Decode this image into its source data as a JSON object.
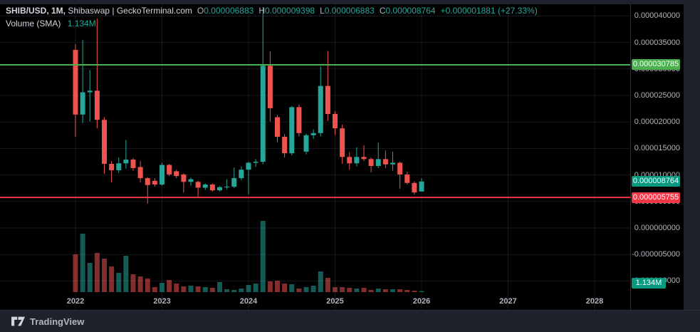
{
  "header": {
    "symbol": "SHIB/USD",
    "interval": "1M",
    "market": "Shibaswap | GeckoTerminal.com",
    "ohlc": {
      "o_label": "O",
      "o": "0.000006883",
      "h_label": "H",
      "h": "0.000009398",
      "l_label": "L",
      "l": "0.000006883",
      "c_label": "C",
      "c": "0.000008764",
      "change": "+0.000001881 (+27.33%)"
    },
    "indicator": {
      "name": "Volume (SMA)",
      "value": "1.134M"
    }
  },
  "footer": {
    "brand": "TradingView"
  },
  "colors": {
    "up": "#26a69a",
    "down": "#ef5350",
    "vol_up": "rgba(38,166,154,0.55)",
    "vol_down": "rgba(239,83,80,0.55)",
    "level_green": "#4caf50",
    "level_red": "#f23645",
    "close_badge": "#089981",
    "axis_text": "#b2b5be",
    "grid": "rgba(42,46,57,0.55)"
  },
  "chart_data": {
    "type": "candlestick",
    "subtype": "price+volume_overlay",
    "price_unit": "1e-6 USD (micro-dollars)",
    "x_unit": "month",
    "y_axis_ticks": [
      {
        "label": "0.000040000",
        "value": 40
      },
      {
        "label": "0.000035000",
        "value": 35
      },
      {
        "label": "0.000030000",
        "value": 30
      },
      {
        "label": "0.000025000",
        "value": 25
      },
      {
        "label": "0.000020000",
        "value": 20
      },
      {
        "label": "0.000015000",
        "value": 15
      },
      {
        "label": "0.000010000",
        "value": 10
      },
      {
        "label": "0.000005000",
        "value": 5
      },
      {
        "label": "0.000000000",
        "value": 0
      },
      {
        "label": "-0.000005000",
        "value": -5
      },
      {
        "label": "-0.000010000",
        "value": -10
      }
    ],
    "x_axis_ticks": [
      {
        "label": "2022",
        "year_index": 0
      },
      {
        "label": "2023",
        "year_index": 1
      },
      {
        "label": "2024",
        "year_index": 2
      },
      {
        "label": "2025",
        "year_index": 3
      },
      {
        "label": "2026",
        "year_index": 4
      },
      {
        "label": "2027",
        "year_index": 5
      },
      {
        "label": "2028",
        "year_index": 6
      }
    ],
    "levels": [
      {
        "name": "resistance-ray",
        "label": "0.000030785",
        "value": 30.785,
        "color": "#4caf50"
      },
      {
        "name": "support-ray",
        "label": "0.000005755",
        "value": 5.755,
        "color": "#f23645"
      }
    ],
    "last_close_badge": {
      "label": "0.000008764",
      "value": 8.764,
      "color": "#089981"
    },
    "volume_badge": {
      "label": "1.134M",
      "color": "#089981"
    },
    "candles": [
      [
        "2022-01",
        33.6,
        34.7,
        17.2,
        21.4
      ],
      [
        "2022-02",
        21.4,
        35.5,
        19.8,
        25.6
      ],
      [
        "2022-03",
        25.6,
        29.8,
        20.1,
        25.9
      ],
      [
        "2022-04",
        25.9,
        39.5,
        18.8,
        20.4
      ],
      [
        "2022-05",
        20.4,
        20.9,
        10.2,
        12.1
      ],
      [
        "2022-06",
        12.1,
        12.6,
        8.6,
        10.9
      ],
      [
        "2022-07",
        10.9,
        13.3,
        10.4,
        12.2
      ],
      [
        "2022-08",
        12.2,
        16.6,
        11.2,
        12.9
      ],
      [
        "2022-09",
        12.9,
        13.2,
        10.8,
        11.3
      ],
      [
        "2022-10",
        11.5,
        12.6,
        8.6,
        9.4
      ],
      [
        "2022-11",
        9.4,
        9.6,
        4.6,
        8.1
      ],
      [
        "2022-12",
        8.9,
        9.4,
        7.8,
        8.2
      ],
      [
        "2023-01",
        8.2,
        12.3,
        8.0,
        11.9
      ],
      [
        "2023-02",
        11.9,
        12.1,
        9.8,
        10.1
      ],
      [
        "2023-03",
        10.7,
        11.0,
        9.4,
        9.8
      ],
      [
        "2023-04",
        10.1,
        10.3,
        6.7,
        8.7
      ],
      [
        "2023-05",
        8.7,
        9.5,
        8.0,
        9.2
      ],
      [
        "2023-06",
        8.7,
        8.9,
        5.8,
        7.6
      ],
      [
        "2023-07",
        7.6,
        8.4,
        7.2,
        8.2
      ],
      [
        "2023-08",
        8.2,
        8.4,
        6.9,
        7.1
      ],
      [
        "2023-09",
        7.1,
        7.9,
        6.9,
        7.7
      ],
      [
        "2023-10",
        7.7,
        9.2,
        7.3,
        7.8
      ],
      [
        "2023-11",
        7.8,
        11.4,
        7.5,
        9.4
      ],
      [
        "2023-12",
        9.4,
        11.6,
        9.0,
        11.0
      ],
      [
        "2024-01",
        11.0,
        12.5,
        6.3,
        12.3
      ],
      [
        "2024-02",
        12.3,
        13.0,
        11.5,
        12.5
      ],
      [
        "2024-03",
        12.5,
        41.7,
        12.0,
        30.6
      ],
      [
        "2024-04",
        30.6,
        33.3,
        20.1,
        22.6
      ],
      [
        "2024-05",
        20.9,
        21.3,
        16.2,
        17.2
      ],
      [
        "2024-06",
        17.2,
        17.7,
        13.3,
        14.1
      ],
      [
        "2024-07",
        14.1,
        23.0,
        13.7,
        22.8
      ],
      [
        "2024-08",
        22.8,
        23.3,
        17.3,
        17.9
      ],
      [
        "2024-09",
        14.4,
        17.8,
        13.9,
        17.5
      ],
      [
        "2024-10",
        17.5,
        18.6,
        16.8,
        17.9
      ],
      [
        "2024-11",
        17.9,
        30.5,
        17.3,
        26.8
      ],
      [
        "2024-12",
        26.8,
        33.4,
        20.2,
        21.5
      ],
      [
        "2025-01",
        21.5,
        22.0,
        17.5,
        18.8
      ],
      [
        "2025-02",
        18.8,
        19.5,
        12.1,
        13.4
      ],
      [
        "2025-03",
        13.4,
        14.3,
        11.0,
        12.2
      ],
      [
        "2025-04",
        12.2,
        15.2,
        11.6,
        13.4
      ],
      [
        "2025-05",
        13.4,
        15.6,
        12.6,
        13.0
      ],
      [
        "2025-06",
        13.0,
        13.3,
        10.5,
        11.7
      ],
      [
        "2025-07",
        11.7,
        16.1,
        11.3,
        13.0
      ],
      [
        "2025-08",
        13.0,
        14.6,
        11.3,
        12.0
      ],
      [
        "2025-09",
        12.0,
        14.4,
        10.8,
        12.3
      ],
      [
        "2025-10",
        12.3,
        12.5,
        7.4,
        10.1
      ],
      [
        "2025-11",
        10.1,
        10.6,
        8.2,
        8.5
      ],
      [
        "2025-12",
        8.5,
        8.8,
        6.3,
        6.7
      ],
      [
        "2026-01",
        6.883,
        9.398,
        6.883,
        8.764
      ]
    ],
    "volume_rel": [
      53,
      82,
      41,
      55,
      47,
      36,
      27,
      51,
      25,
      22,
      19,
      7,
      13,
      17,
      12,
      8,
      9,
      8,
      7,
      6,
      14,
      4,
      3,
      5,
      10,
      12,
      100,
      15,
      16,
      12,
      11,
      5,
      7,
      9,
      29,
      20,
      7,
      7,
      6,
      5,
      6,
      3,
      5,
      4,
      4,
      4,
      3,
      2,
      1.5
    ]
  }
}
